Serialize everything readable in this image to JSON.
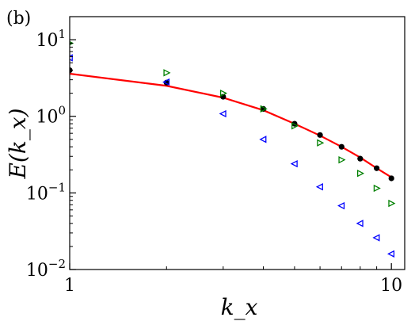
{
  "panel_label": "(b)",
  "chart_data": {
    "type": "scatter",
    "title": "",
    "xlabel": "k_x",
    "ylabel": "E(k_x)",
    "xscale": "log",
    "yscale": "log",
    "xlim": [
      1,
      11
    ],
    "ylim": [
      0.01,
      20
    ],
    "grid": false,
    "x_ticks": [
      {
        "value": 1,
        "label": "1"
      },
      {
        "value": 10,
        "label": "10"
      }
    ],
    "y_ticks": [
      {
        "value": 0.01,
        "base": "10",
        "exp": "−2"
      },
      {
        "value": 0.1,
        "base": "10",
        "exp": "−1"
      },
      {
        "value": 1,
        "base": "10",
        "exp": "0"
      },
      {
        "value": 10,
        "base": "10",
        "exp": "1"
      }
    ],
    "series": [
      {
        "kind": "line",
        "color": "#ff0000",
        "x": [
          1,
          2,
          3,
          4,
          5,
          6,
          7,
          8,
          9,
          10
        ],
        "y": [
          3.6,
          2.5,
          1.75,
          1.2,
          0.8,
          0.56,
          0.4,
          0.29,
          0.21,
          0.16
        ]
      },
      {
        "kind": "marker",
        "marker": "circle",
        "color": "#000000",
        "x": [
          1,
          2,
          3,
          4,
          5,
          6,
          7,
          8,
          9,
          10
        ],
        "y": [
          4.0,
          2.75,
          1.8,
          1.25,
          0.8,
          0.57,
          0.4,
          0.28,
          0.21,
          0.155
        ]
      },
      {
        "kind": "marker",
        "marker": "triangle-right",
        "color": "#008000",
        "x": [
          1,
          2,
          3,
          4,
          5,
          6,
          7,
          8,
          9,
          10
        ],
        "y": [
          9.0,
          3.7,
          2.0,
          1.25,
          0.75,
          0.45,
          0.27,
          0.18,
          0.115,
          0.073
        ]
      },
      {
        "kind": "marker",
        "marker": "triangle-left",
        "color": "#0000ff",
        "x": [
          1,
          2,
          3,
          4,
          5,
          6,
          7,
          8,
          9,
          10
        ],
        "y": [
          5.8,
          2.8,
          1.08,
          0.5,
          0.24,
          0.12,
          0.068,
          0.04,
          0.026,
          0.016
        ]
      }
    ]
  }
}
